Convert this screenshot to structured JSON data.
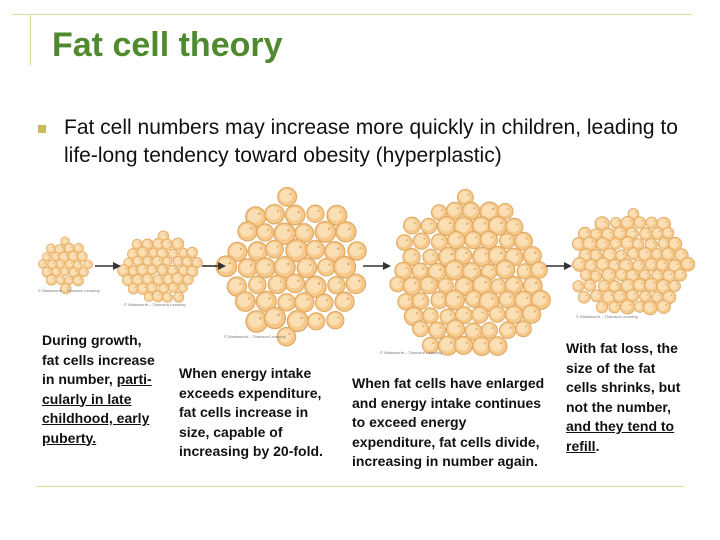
{
  "slide": {
    "title": "Fat cell theory",
    "bullet": "Fat cell numbers may increase more quickly in children, leading to life-long tendency toward obesity (hyperplastic)"
  },
  "captions": {
    "growth": {
      "plain": "During growth, fat cells increase in number, ",
      "underlined": "parti-cularly in late childhood, early puberty."
    },
    "intake": "When energy intake exceeds expenditure, fat cells increase in size, capable of increasing by 20-fold.",
    "enlarged": "When fat cells have enlarged and energy intake continues to exceed energy expenditure, fat cells divide, increasing in number again.",
    "loss": {
      "plain": "With fat loss, the size of the fat cells shrinks, but not the number, ",
      "underlined": "and they tend to refill",
      "end": "."
    }
  },
  "image_credit": "© Wadsworth – Thomson Learning",
  "colors": {
    "title": "#4f8a2e",
    "rule": "#e0d79a",
    "bullet_marker": "#c9b95a",
    "cell_fill": "#f6c98b",
    "cell_edge": "#e0a862",
    "cell_highlight": "#fbe6c2"
  }
}
